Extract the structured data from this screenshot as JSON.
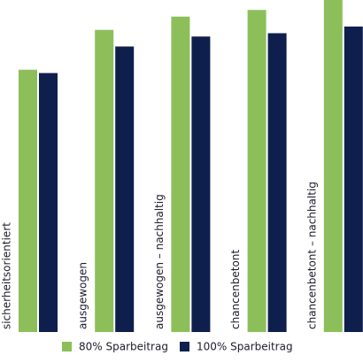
{
  "chart_data": {
    "type": "bar",
    "categories": [
      "sicherheitsorientiert",
      "ausgewogen",
      "ausgewogen – nachhaltig",
      "chancenbetont",
      "chancenbetont – nachhaltig"
    ],
    "series": [
      {
        "name": "80% Sparbeitrag",
        "color": "#8cbf5a",
        "values": [
          79,
          91,
          95,
          97,
          100
        ]
      },
      {
        "name": "100% Sparbeitrag",
        "color": "#0f1f4d",
        "values": [
          78,
          86,
          89,
          90,
          92
        ]
      }
    ]
  }
}
